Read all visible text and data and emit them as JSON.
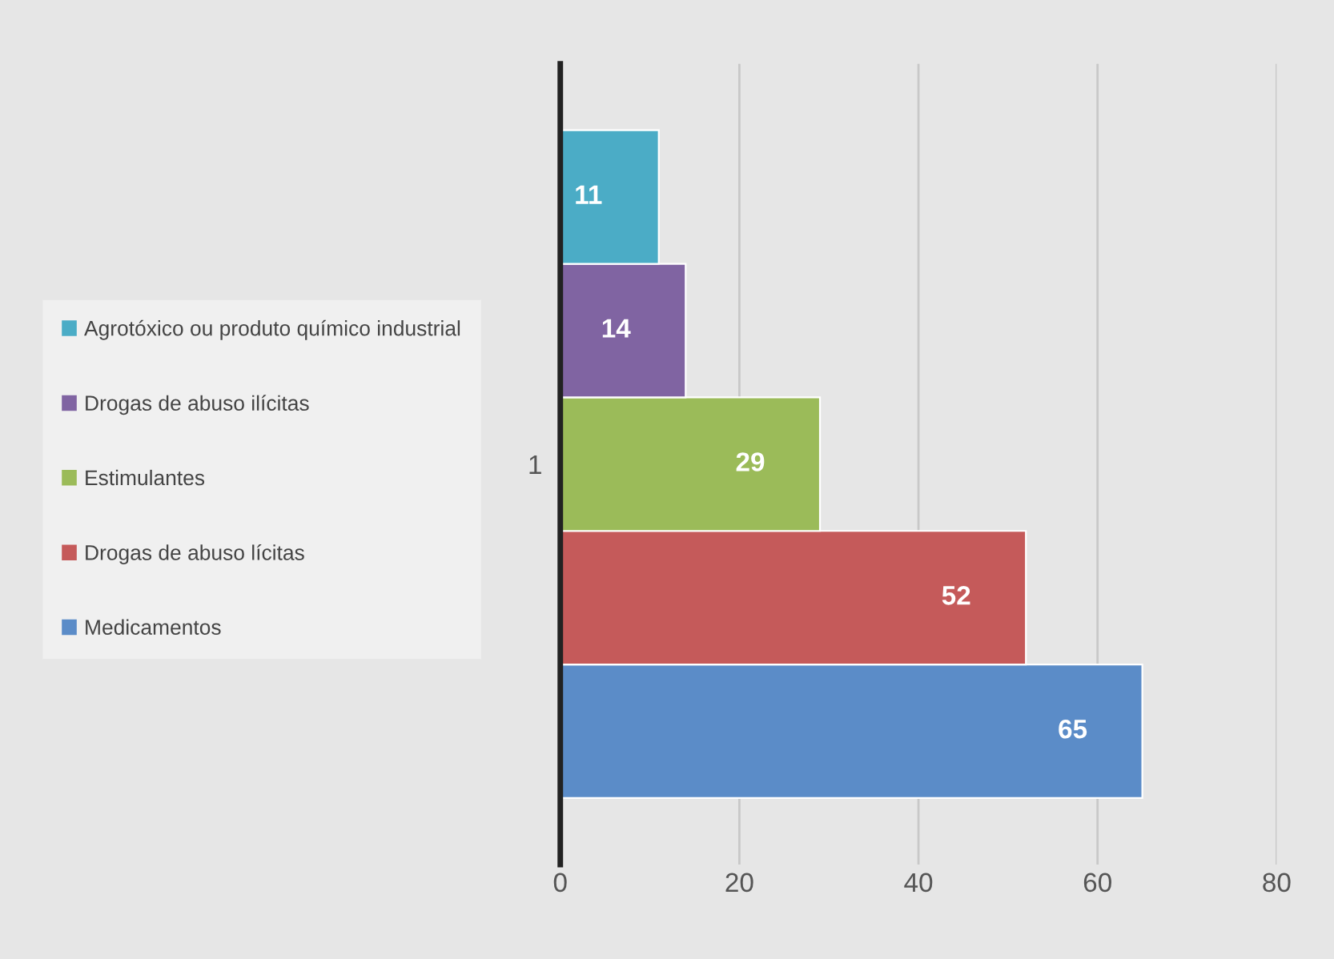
{
  "chart_data": {
    "type": "bar",
    "orientation": "horizontal",
    "categories": [
      "1"
    ],
    "series": [
      {
        "name": "Medicamentos",
        "color": "#5b8cc8",
        "values": [
          65
        ]
      },
      {
        "name": "Drogas de abuso lícitas",
        "color": "#c55a5a",
        "values": [
          52
        ]
      },
      {
        "name": "Estimulantes",
        "color": "#9bbb59",
        "values": [
          29
        ]
      },
      {
        "name": "Drogas de abuso ilícitas",
        "color": "#8064a2",
        "values": [
          14
        ]
      },
      {
        "name": "Agrotóxico ou produto químico industrial",
        "color": "#4bacc6",
        "values": [
          11
        ]
      }
    ],
    "xlim": [
      0,
      80
    ],
    "xticks": [
      0,
      20,
      40,
      60,
      80
    ],
    "grid": "x",
    "legend": "left",
    "data_labels": true
  }
}
